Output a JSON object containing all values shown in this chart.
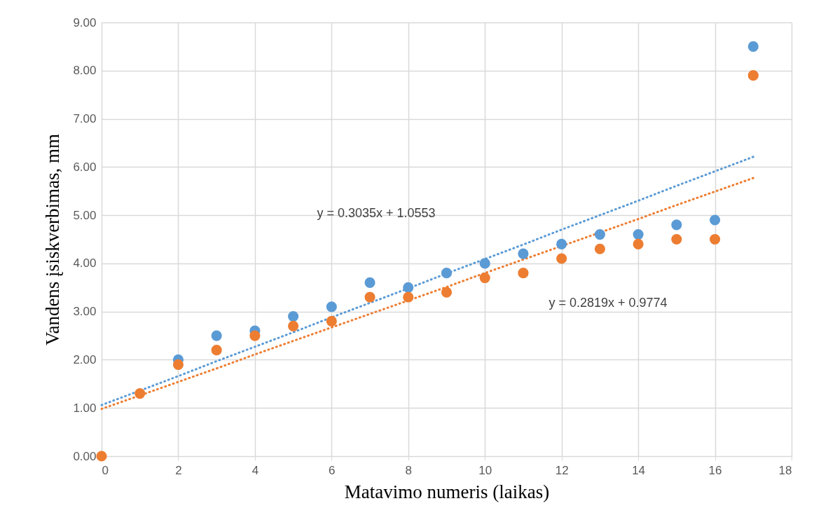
{
  "chart_data": {
    "type": "scatter",
    "xlabel": "Matavimo numeris (laikas)",
    "ylabel": "Vandens įsiskverbimas, mm",
    "x": [
      0,
      1,
      2,
      3,
      4,
      5,
      6,
      7,
      8,
      9,
      10,
      11,
      12,
      13,
      14,
      15,
      16,
      17
    ],
    "series": [
      {
        "color": "#5b9bd5",
        "marker": "circle",
        "values": [
          null,
          null,
          2.0,
          2.5,
          2.6,
          2.9,
          3.1,
          3.6,
          3.5,
          3.8,
          4.0,
          4.2,
          4.4,
          4.6,
          4.6,
          4.8,
          4.9,
          8.5
        ]
      },
      {
        "color": "#ed7d31",
        "marker": "circle",
        "values": [
          0,
          1.3,
          1.9,
          2.2,
          2.5,
          2.7,
          2.8,
          3.3,
          3.3,
          3.4,
          3.7,
          3.8,
          4.1,
          4.3,
          4.4,
          4.5,
          4.5,
          7.9
        ]
      },
      {
        "type": "line",
        "line_style": "dotted",
        "marker": "none",
        "color": "#5b9bd5",
        "values": [
          1.06,
          1.36,
          1.66,
          1.97,
          2.27,
          2.57,
          2.88,
          3.18,
          3.48,
          3.79,
          4.09,
          4.39,
          4.7,
          5.0,
          5.3,
          5.61,
          5.91,
          6.21
        ]
      },
      {
        "type": "line",
        "line_style": "dotted",
        "marker": "none",
        "color": "#ed7d31",
        "values": [
          0.98,
          1.26,
          1.54,
          1.82,
          2.11,
          2.39,
          2.67,
          2.95,
          3.23,
          3.51,
          3.8,
          4.08,
          4.36,
          4.64,
          4.92,
          5.21,
          5.49,
          5.77
        ]
      }
    ],
    "xlim": [
      0,
      18
    ],
    "xticks": [
      0,
      2,
      4,
      6,
      8,
      10,
      12,
      14,
      16,
      18
    ],
    "ylim": [
      0,
      9
    ],
    "yticks": [
      {
        "value": 0,
        "label": "0.00"
      },
      {
        "value": 1,
        "label": "1.00"
      },
      {
        "value": 2,
        "label": "2.00"
      },
      {
        "value": 3,
        "label": "3.00"
      },
      {
        "value": 4,
        "label": "4.00"
      },
      {
        "value": 5,
        "label": "5.00"
      },
      {
        "value": 6,
        "label": "6.00"
      },
      {
        "value": 7,
        "label": "7.00"
      },
      {
        "value": 8,
        "label": "8.00"
      },
      {
        "value": 9,
        "label": "9.00"
      }
    ],
    "grid": true,
    "annotations": [
      "y = 0.3035x + 1.0553",
      "y = 0.2819x + 0.9774"
    ]
  }
}
